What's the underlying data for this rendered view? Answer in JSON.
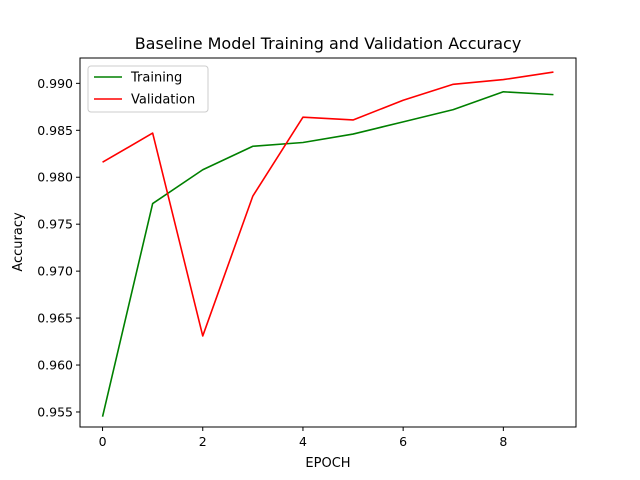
{
  "chart_data": {
    "type": "line",
    "title": "Baseline Model Training and Validation Accuracy",
    "xlabel": "EPOCH",
    "ylabel": "Accuracy",
    "x": [
      0,
      1,
      2,
      3,
      4,
      5,
      6,
      7,
      8,
      9
    ],
    "xlim": [
      -0.45,
      9.45
    ],
    "ylim": [
      0.9534,
      0.9927
    ],
    "xticks": [
      0,
      2,
      4,
      6,
      8
    ],
    "yticks": [
      0.955,
      0.96,
      0.965,
      0.97,
      0.975,
      0.98,
      0.985,
      0.99
    ],
    "ytick_labels": [
      "0.955",
      "0.960",
      "0.965",
      "0.970",
      "0.975",
      "0.980",
      "0.985",
      "0.990"
    ],
    "grid": false,
    "legend_position": "top-left",
    "series": [
      {
        "name": "Training",
        "color": "#008000",
        "values": [
          0.9545,
          0.9772,
          0.9808,
          0.9833,
          0.9837,
          0.9846,
          0.9859,
          0.9872,
          0.9891,
          0.9888
        ]
      },
      {
        "name": "Validation",
        "color": "#ff0000",
        "values": [
          0.9816,
          0.9847,
          0.9631,
          0.978,
          0.9864,
          0.9861,
          0.9882,
          0.9899,
          0.9904,
          0.9912
        ]
      }
    ]
  }
}
